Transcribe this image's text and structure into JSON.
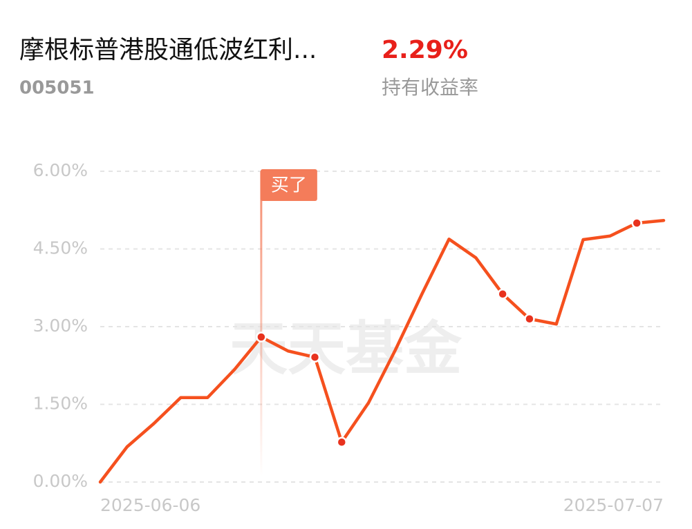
{
  "header": {
    "title": "摩根标普港股通低波红利...",
    "code": "005051",
    "return_value": "2.29%",
    "return_label": "持有收益率"
  },
  "chart_data": {
    "type": "line",
    "categories": [
      "2025-06-06",
      null,
      null,
      null,
      null,
      null,
      null,
      null,
      null,
      null,
      null,
      null,
      null,
      null,
      null,
      null,
      null,
      null,
      null,
      null,
      null,
      "2025-07-07"
    ],
    "values": [
      0,
      0.68,
      1.13,
      1.63,
      1.63,
      2.17,
      2.8,
      2.53,
      2.41,
      0.77,
      1.53,
      2.55,
      3.64,
      4.69,
      4.33,
      3.63,
      3.15,
      3.05,
      4.68,
      4.75,
      5.0,
      5.05
    ],
    "color": "#f5501e",
    "dots": [
      6,
      8,
      9,
      15,
      16,
      20
    ],
    "dot_color": "#e8321e",
    "annotation": {
      "text": "买了",
      "index": 6
    },
    "watermark": "天天基金",
    "ylim": [
      0,
      6
    ],
    "yticks": [
      {
        "value": 0,
        "label": "0.00%"
      },
      {
        "value": 1.5,
        "label": "1.50%"
      },
      {
        "value": 3,
        "label": "3.00%"
      },
      {
        "value": 4.5,
        "label": "4.50%"
      },
      {
        "value": 6,
        "label": "6.00%"
      }
    ],
    "grid": true
  }
}
